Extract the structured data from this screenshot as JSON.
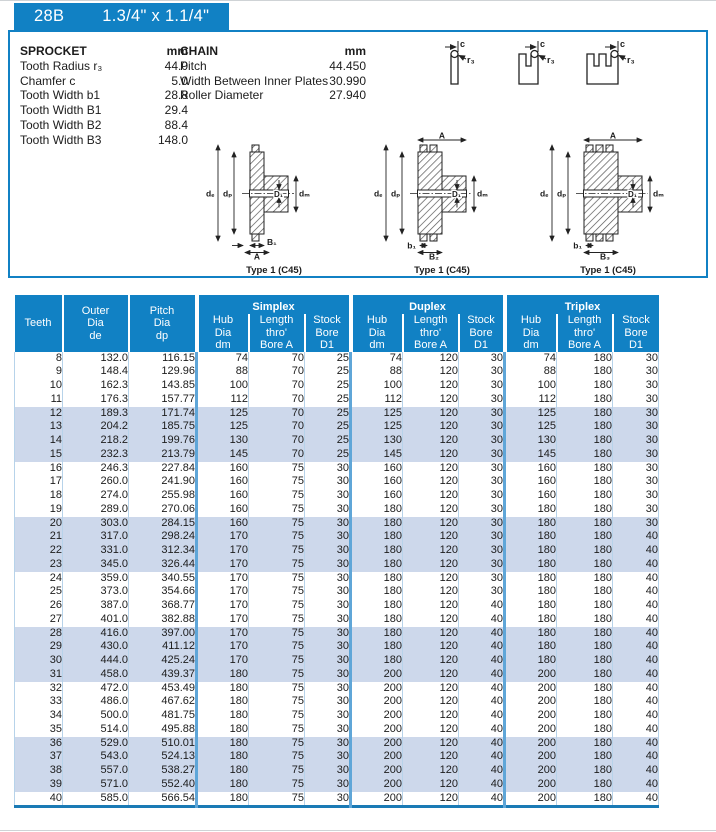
{
  "colors": {
    "accent": "#1181c4",
    "row_shade": "#cdd8eb",
    "grid_thin": "#b7d3ea",
    "grid_group": "#5fa6d8",
    "table_bottom": "#1a7ab5",
    "text": "#1c1c1c"
  },
  "tab": {
    "code": "28B",
    "size": "1.3/4\" x 1.1/4\""
  },
  "sprocket": {
    "title": "SPROCKET",
    "unit": "mm",
    "rows": [
      [
        "Tooth Radius r₃",
        "44.0"
      ],
      [
        "Chamfer c",
        "5.0"
      ],
      [
        "Tooth Width b1",
        "28.8"
      ],
      [
        "Tooth Width B1",
        "29.4"
      ],
      [
        "Tooth Width B2",
        "88.4"
      ],
      [
        "Tooth Width B3",
        "148.0"
      ]
    ]
  },
  "chain": {
    "title": "CHAIN",
    "unit": "mm",
    "rows": [
      [
        "Pitch",
        "44.450"
      ],
      [
        "Width Between Inner Plates",
        "30.990"
      ],
      [
        "Roller Diameter",
        "27.940"
      ]
    ]
  },
  "diagrams": {
    "profile_labels": {
      "chamfer": "c",
      "radius": "r₃"
    },
    "profiles": [
      {
        "rows": 1
      },
      {
        "rows": 2
      },
      {
        "rows": 3
      }
    ],
    "sections": [
      {
        "caption": "Type 1 (C45)",
        "rows": 1,
        "top": null,
        "left1": "dₑ",
        "left2": "dₚ",
        "right1": "D₁",
        "right2": "dₘ",
        "bot1": "B₁",
        "bot2": "A"
      },
      {
        "caption": "Type 1 (C45)",
        "rows": 2,
        "top": "A",
        "left1": "dₑ",
        "left2": "dₚ",
        "right1": "D₁",
        "right2": "dₘ",
        "bot1": "b₁",
        "bot2": "B₂"
      },
      {
        "caption": "Type 1 (C45)",
        "rows": 3,
        "top": "A",
        "left1": "dₑ",
        "left2": "dₚ",
        "right1": "D₁",
        "right2": "dₘ",
        "bot1": "b₁",
        "bot2": "B₃"
      }
    ]
  },
  "table": {
    "header": {
      "teeth": [
        "Teeth"
      ],
      "outer": [
        "Outer",
        "Dia",
        "de"
      ],
      "pitch": [
        "Pitch",
        "Dia",
        "dp"
      ],
      "groups": [
        "Simplex",
        "Duplex",
        "Triplex"
      ],
      "sub": [
        [
          "Hub",
          "Dia",
          "dm"
        ],
        [
          "Length",
          "thro'",
          "Bore A"
        ],
        [
          "Stock",
          "Bore",
          "D1"
        ]
      ]
    },
    "rows": [
      [
        "8",
        "132.0",
        "116.15",
        "74",
        "70",
        "25",
        "74",
        "120",
        "30",
        "74",
        "180",
        "30"
      ],
      [
        "9",
        "148.4",
        "129.96",
        "88",
        "70",
        "25",
        "88",
        "120",
        "30",
        "88",
        "180",
        "30"
      ],
      [
        "10",
        "162.3",
        "143.85",
        "100",
        "70",
        "25",
        "100",
        "120",
        "30",
        "100",
        "180",
        "30"
      ],
      [
        "11",
        "176.3",
        "157.77",
        "112",
        "70",
        "25",
        "112",
        "120",
        "30",
        "112",
        "180",
        "30"
      ],
      [
        "12",
        "189.3",
        "171.74",
        "125",
        "70",
        "25",
        "125",
        "120",
        "30",
        "125",
        "180",
        "30"
      ],
      [
        "13",
        "204.2",
        "185.75",
        "125",
        "70",
        "25",
        "125",
        "120",
        "30",
        "125",
        "180",
        "30"
      ],
      [
        "14",
        "218.2",
        "199.76",
        "130",
        "70",
        "25",
        "130",
        "120",
        "30",
        "130",
        "180",
        "30"
      ],
      [
        "15",
        "232.3",
        "213.79",
        "145",
        "70",
        "25",
        "145",
        "120",
        "30",
        "145",
        "180",
        "30"
      ],
      [
        "16",
        "246.3",
        "227.84",
        "160",
        "75",
        "30",
        "160",
        "120",
        "30",
        "160",
        "180",
        "30"
      ],
      [
        "17",
        "260.0",
        "241.90",
        "160",
        "75",
        "30",
        "160",
        "120",
        "30",
        "160",
        "180",
        "30"
      ],
      [
        "18",
        "274.0",
        "255.98",
        "160",
        "75",
        "30",
        "160",
        "120",
        "30",
        "160",
        "180",
        "30"
      ],
      [
        "19",
        "289.0",
        "270.06",
        "160",
        "75",
        "30",
        "180",
        "120",
        "30",
        "180",
        "180",
        "30"
      ],
      [
        "20",
        "303.0",
        "284.15",
        "160",
        "75",
        "30",
        "180",
        "120",
        "30",
        "180",
        "180",
        "30"
      ],
      [
        "21",
        "317.0",
        "298.24",
        "170",
        "75",
        "30",
        "180",
        "120",
        "30",
        "180",
        "180",
        "40"
      ],
      [
        "22",
        "331.0",
        "312.34",
        "170",
        "75",
        "30",
        "180",
        "120",
        "30",
        "180",
        "180",
        "40"
      ],
      [
        "23",
        "345.0",
        "326.44",
        "170",
        "75",
        "30",
        "180",
        "120",
        "30",
        "180",
        "180",
        "40"
      ],
      [
        "24",
        "359.0",
        "340.55",
        "170",
        "75",
        "30",
        "180",
        "120",
        "30",
        "180",
        "180",
        "40"
      ],
      [
        "25",
        "373.0",
        "354.66",
        "170",
        "75",
        "30",
        "180",
        "120",
        "30",
        "180",
        "180",
        "40"
      ],
      [
        "26",
        "387.0",
        "368.77",
        "170",
        "75",
        "30",
        "180",
        "120",
        "40",
        "180",
        "180",
        "40"
      ],
      [
        "27",
        "401.0",
        "382.88",
        "170",
        "75",
        "30",
        "180",
        "120",
        "40",
        "180",
        "180",
        "40"
      ],
      [
        "28",
        "416.0",
        "397.00",
        "170",
        "75",
        "30",
        "180",
        "120",
        "40",
        "180",
        "180",
        "40"
      ],
      [
        "29",
        "430.0",
        "411.12",
        "170",
        "75",
        "30",
        "180",
        "120",
        "40",
        "180",
        "180",
        "40"
      ],
      [
        "30",
        "444.0",
        "425.24",
        "170",
        "75",
        "30",
        "180",
        "120",
        "40",
        "180",
        "180",
        "40"
      ],
      [
        "31",
        "458.0",
        "439.37",
        "180",
        "75",
        "30",
        "200",
        "120",
        "40",
        "200",
        "180",
        "40"
      ],
      [
        "32",
        "472.0",
        "453.49",
        "180",
        "75",
        "30",
        "200",
        "120",
        "40",
        "200",
        "180",
        "40"
      ],
      [
        "33",
        "486.0",
        "467.62",
        "180",
        "75",
        "30",
        "200",
        "120",
        "40",
        "200",
        "180",
        "40"
      ],
      [
        "34",
        "500.0",
        "481.75",
        "180",
        "75",
        "30",
        "200",
        "120",
        "40",
        "200",
        "180",
        "40"
      ],
      [
        "35",
        "514.0",
        "495.88",
        "180",
        "75",
        "30",
        "200",
        "120",
        "40",
        "200",
        "180",
        "40"
      ],
      [
        "36",
        "529.0",
        "510.01",
        "180",
        "75",
        "30",
        "200",
        "120",
        "40",
        "200",
        "180",
        "40"
      ],
      [
        "37",
        "543.0",
        "524.13",
        "180",
        "75",
        "30",
        "200",
        "120",
        "40",
        "200",
        "180",
        "40"
      ],
      [
        "38",
        "557.0",
        "538.27",
        "180",
        "75",
        "30",
        "200",
        "120",
        "40",
        "200",
        "180",
        "40"
      ],
      [
        "39",
        "571.0",
        "552.40",
        "180",
        "75",
        "30",
        "200",
        "120",
        "40",
        "200",
        "180",
        "40"
      ],
      [
        "40",
        "585.0",
        "566.54",
        "180",
        "75",
        "30",
        "200",
        "120",
        "40",
        "200",
        "180",
        "40"
      ]
    ]
  }
}
